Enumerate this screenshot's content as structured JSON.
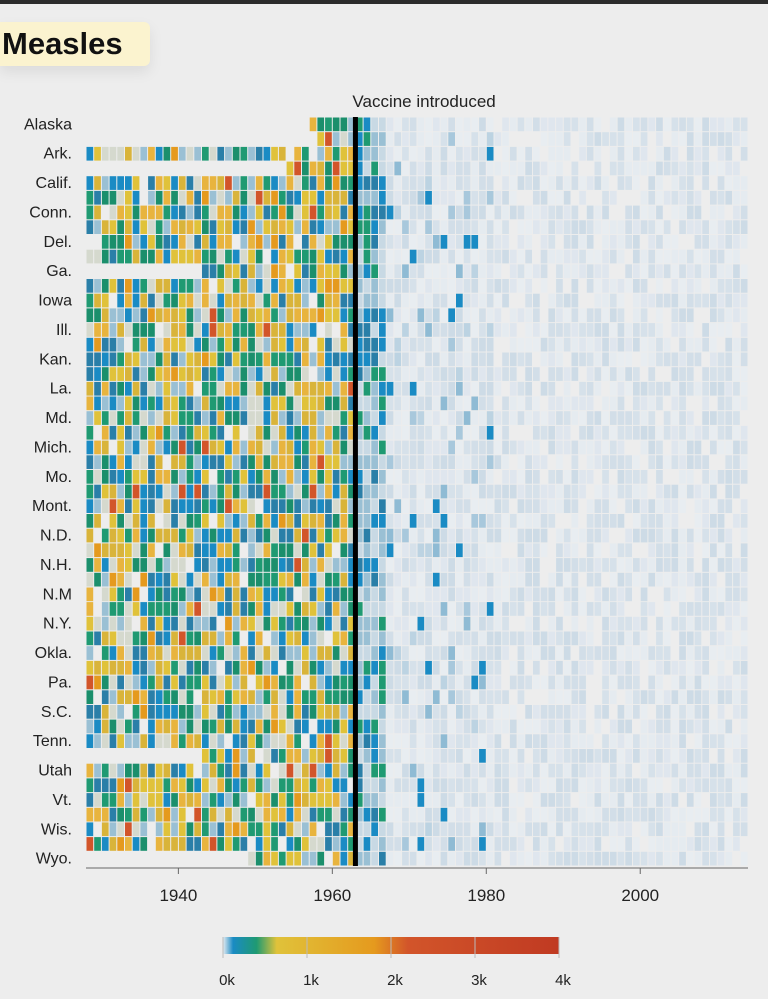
{
  "title": "Measles",
  "chart_data": {
    "type": "heatmap",
    "annotation": "Vaccine introduced",
    "vaccine_year": 1963,
    "x_range": [
      1928,
      2013
    ],
    "x_ticks": [
      "1940",
      "1960",
      "1980",
      "2000"
    ],
    "x_tick_values": [
      1940,
      1960,
      1980,
      2000
    ],
    "row_labels": [
      "Alaska",
      "Ark.",
      "Calif.",
      "Conn.",
      "Del.",
      "Ga.",
      "Iowa",
      "Ill.",
      "Kan.",
      "La.",
      "Md.",
      "Mich.",
      "Mo.",
      "Mont.",
      "N.D.",
      "N.H.",
      "N.M",
      "N.Y.",
      "Okla.",
      "Pa.",
      "S.C.",
      "Tenn.",
      "Utah",
      "Vt.",
      "Wis.",
      "Wyo."
    ],
    "rows_total": 51,
    "color_scale": {
      "min": 0,
      "max": 4000,
      "stops": [
        "#e4ebf1",
        "#1a8bc4",
        "#1f9a72",
        "#e0c23a",
        "#e59a1e",
        "#d2552a",
        "#c03a22"
      ],
      "tick_labels": [
        "0k",
        "1k",
        "2k",
        "3k",
        "4k"
      ],
      "tick_values": [
        0,
        1000,
        2000,
        3000,
        4000
      ]
    },
    "grid": false
  }
}
